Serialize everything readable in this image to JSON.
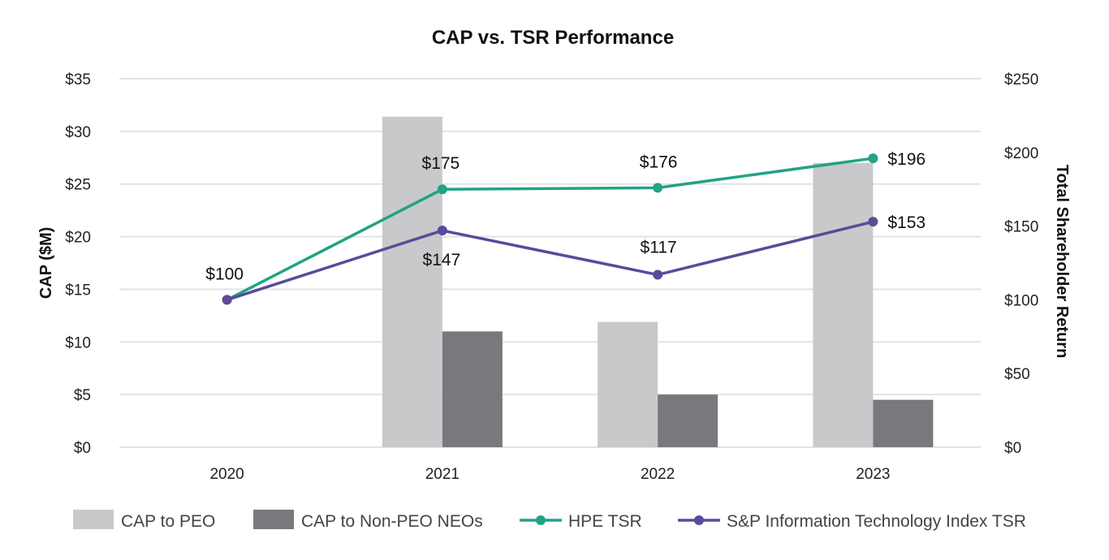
{
  "chart_data": {
    "type": "bar+line",
    "title": "CAP vs. TSR Performance",
    "categories": [
      "2020",
      "2021",
      "2022",
      "2023"
    ],
    "y_left": {
      "label": "CAP ($M)",
      "ylim": [
        0,
        35
      ],
      "ticks": [
        0,
        5,
        10,
        15,
        20,
        25,
        30,
        35
      ],
      "tick_labels": [
        "$0",
        "$5",
        "$10",
        "$15",
        "$20",
        "$25",
        "$30",
        "$35"
      ]
    },
    "y_right": {
      "label": "Total Shareholder Return",
      "ylim": [
        0,
        250
      ],
      "ticks": [
        0,
        50,
        100,
        150,
        200,
        250
      ],
      "tick_labels": [
        "$0",
        "$50",
        "$100",
        "$150",
        "$200",
        "$250"
      ]
    },
    "grid": true,
    "legend_position": "bottom",
    "bar_series": [
      {
        "name": "CAP to PEO",
        "color": "#c8c9cb",
        "values": [
          null,
          31.4,
          11.9,
          27.0
        ]
      },
      {
        "name": "CAP to Non-PEO NEOs",
        "color": "#78797c",
        "values": [
          null,
          11.0,
          5.0,
          4.5
        ]
      }
    ],
    "line_series": [
      {
        "name": "HPE TSR",
        "color": "#21a384",
        "values": [
          100,
          175,
          176,
          196
        ],
        "labels": [
          "$100",
          "$175",
          "$176",
          "$196"
        ]
      },
      {
        "name": "S&P Information Technology Index TSR",
        "color": "#5b4a9a",
        "values": [
          100,
          147,
          117,
          153
        ],
        "labels": [
          "",
          "$147",
          "$117",
          "$153"
        ]
      }
    ]
  }
}
